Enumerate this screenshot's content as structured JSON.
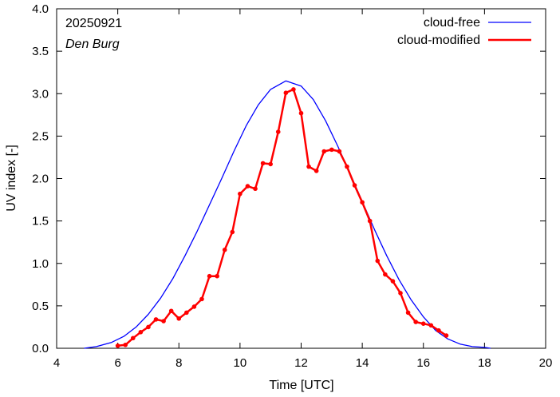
{
  "chart_data": {
    "type": "line",
    "title": "",
    "xlabel": "Time  [UTC]",
    "ylabel": "UV index  [-]",
    "xlim": [
      4,
      20
    ],
    "ylim": [
      0,
      4.0
    ],
    "x_ticks": [
      4,
      6,
      8,
      10,
      12,
      14,
      16,
      18,
      20
    ],
    "x_tick_labels": [
      "4",
      "6",
      "8",
      "10",
      "12",
      "14",
      "16",
      "18",
      "20"
    ],
    "y_ticks": [
      0,
      0.5,
      1.0,
      1.5,
      2.0,
      2.5,
      3.0,
      3.5,
      4.0
    ],
    "y_tick_labels": [
      "0.0",
      "0.5",
      "1.0",
      "1.5",
      "2.0",
      "2.5",
      "3.0",
      "3.5",
      "4.0"
    ],
    "grid": false,
    "legend_position": "top-right",
    "annotations": {
      "date": "20250921",
      "location": "Den Burg"
    },
    "series": [
      {
        "name": "cloud-free",
        "color": "#0000ff",
        "marker": false,
        "x": [
          4.9,
          5.3,
          5.8,
          6.2,
          6.6,
          7.0,
          7.4,
          7.8,
          8.2,
          8.6,
          9.0,
          9.4,
          9.8,
          10.2,
          10.6,
          11.0,
          11.5,
          12.0,
          12.4,
          12.8,
          13.2,
          13.6,
          14.0,
          14.4,
          14.8,
          15.2,
          15.6,
          16.0,
          16.4,
          16.8,
          17.2,
          17.6,
          18.0,
          18.2
        ],
        "y": [
          0.0,
          0.02,
          0.07,
          0.14,
          0.25,
          0.4,
          0.59,
          0.82,
          1.09,
          1.38,
          1.69,
          2.0,
          2.32,
          2.62,
          2.87,
          3.05,
          3.15,
          3.09,
          2.93,
          2.68,
          2.38,
          2.06,
          1.73,
          1.4,
          1.09,
          0.81,
          0.57,
          0.37,
          0.21,
          0.11,
          0.05,
          0.02,
          0.01,
          0.0
        ]
      },
      {
        "name": "cloud-modified",
        "color": "#ff0000",
        "marker": true,
        "x": [
          6.0,
          6.25,
          6.5,
          6.75,
          7.0,
          7.25,
          7.5,
          7.75,
          8.0,
          8.25,
          8.5,
          8.75,
          9.0,
          9.25,
          9.5,
          9.75,
          10.0,
          10.25,
          10.5,
          10.75,
          11.0,
          11.25,
          11.5,
          11.75,
          12.0,
          12.25,
          12.5,
          12.75,
          13.0,
          13.25,
          13.5,
          13.75,
          14.0,
          14.25,
          14.5,
          14.75,
          15.0,
          15.25,
          15.5,
          15.75,
          16.0,
          16.25,
          16.5,
          16.75
        ],
        "y": [
          0.03,
          0.04,
          0.12,
          0.19,
          0.25,
          0.34,
          0.32,
          0.44,
          0.35,
          0.42,
          0.49,
          0.58,
          0.85,
          0.85,
          1.16,
          1.37,
          1.82,
          1.91,
          1.88,
          2.18,
          2.17,
          2.55,
          3.01,
          3.05,
          2.77,
          2.14,
          2.09,
          2.32,
          2.34,
          2.32,
          2.14,
          1.92,
          1.72,
          1.5,
          1.03,
          0.87,
          0.79,
          0.65,
          0.42,
          0.31,
          0.29,
          0.27,
          0.21,
          0.15
        ]
      }
    ]
  }
}
